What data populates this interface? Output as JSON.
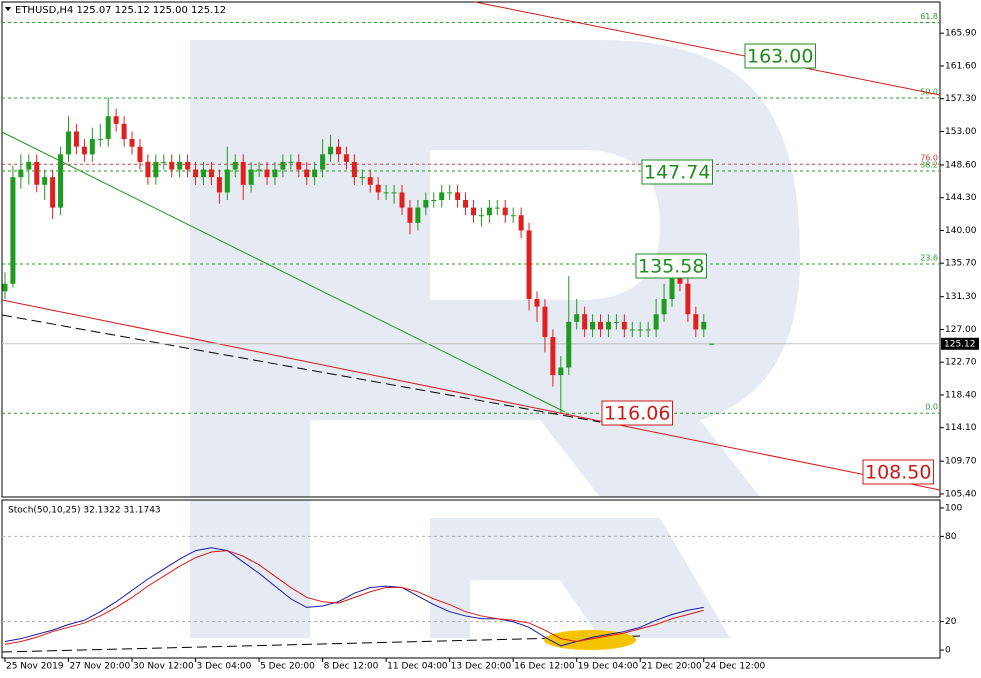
{
  "chart_data": [
    {
      "type": "candlestick",
      "title": "ETHUSD,H4  125.07 125.12 125.00 125.12",
      "up_color": "#1e9a1e",
      "down_color": "#e0201e",
      "x": [
        0,
        2,
        4,
        6,
        8,
        10,
        12,
        14,
        16,
        18,
        20,
        22,
        24,
        26,
        28,
        30,
        32,
        34,
        36,
        38,
        40,
        42,
        44,
        46,
        48,
        50,
        52,
        54,
        56,
        58,
        60,
        62,
        64,
        66,
        68,
        70,
        72,
        74,
        76,
        78,
        80,
        82,
        84,
        86,
        88,
        90,
        92,
        94,
        96,
        98,
        100,
        102,
        104,
        106,
        108,
        110,
        112,
        114,
        116,
        118,
        120,
        122,
        124,
        126,
        128,
        130,
        132,
        134,
        136,
        138,
        140,
        142,
        144,
        146,
        148,
        150,
        152,
        154,
        156,
        158,
        160,
        162,
        164,
        166,
        168,
        170,
        172,
        174,
        176,
        178
      ],
      "ohlc": [
        [
          132,
          134.5,
          131,
          133
        ],
        [
          133,
          148.5,
          132.5,
          147
        ],
        [
          147,
          150,
          145.5,
          148
        ],
        [
          148,
          150,
          146,
          149
        ],
        [
          149,
          150,
          145,
          146
        ],
        [
          146,
          148,
          144,
          147
        ],
        [
          147,
          148,
          141.5,
          143
        ],
        [
          143,
          151,
          142,
          150
        ],
        [
          150,
          155,
          149,
          153
        ],
        [
          153,
          154,
          150,
          151
        ],
        [
          151,
          152,
          149,
          150
        ],
        [
          150,
          153.5,
          149,
          152
        ],
        [
          152,
          154,
          151,
          152
        ],
        [
          152,
          157.5,
          151,
          155
        ],
        [
          155,
          156,
          153,
          154
        ],
        [
          154,
          155,
          151,
          152
        ],
        [
          152,
          153,
          150,
          151
        ],
        [
          151,
          152,
          148,
          149
        ],
        [
          149,
          150,
          146,
          147
        ],
        [
          147,
          150,
          146,
          149
        ],
        [
          149,
          150,
          148,
          149
        ],
        [
          149,
          150,
          147,
          148
        ],
        [
          148,
          150,
          147,
          149
        ],
        [
          149,
          150,
          147,
          148
        ],
        [
          148,
          149,
          146,
          147
        ],
        [
          147,
          149,
          146,
          148
        ],
        [
          148,
          149,
          146,
          147
        ],
        [
          147,
          148,
          143.5,
          145
        ],
        [
          145,
          151,
          144,
          148
        ],
        [
          148,
          150,
          147,
          149
        ],
        [
          149,
          150,
          144,
          146
        ],
        [
          146,
          149,
          145,
          148
        ],
        [
          148,
          149,
          147,
          148
        ],
        [
          148,
          149,
          146,
          147
        ],
        [
          147,
          149,
          146,
          148
        ],
        [
          148,
          150,
          147,
          149
        ],
        [
          149,
          150,
          148,
          149
        ],
        [
          149,
          150,
          147,
          148
        ],
        [
          148,
          149,
          146,
          147
        ],
        [
          147,
          149,
          146,
          148
        ],
        [
          148,
          152,
          147,
          150
        ],
        [
          150,
          152.5,
          149,
          151
        ],
        [
          151,
          152,
          149,
          150
        ],
        [
          150,
          151,
          148,
          149
        ],
        [
          149,
          150,
          146,
          147
        ],
        [
          147,
          148,
          146,
          147
        ],
        [
          147,
          148,
          145,
          146
        ],
        [
          146,
          147,
          144,
          145
        ],
        [
          145,
          146,
          144,
          145
        ],
        [
          145,
          146,
          143.5,
          145
        ],
        [
          145,
          146,
          142,
          143
        ],
        [
          143,
          144,
          139.5,
          141
        ],
        [
          141,
          144,
          140,
          143
        ],
        [
          143,
          145,
          142,
          144
        ],
        [
          144,
          145,
          143,
          144
        ],
        [
          144,
          146,
          143,
          145
        ],
        [
          145,
          146,
          144,
          145
        ],
        [
          145,
          146,
          143,
          144
        ],
        [
          144,
          145,
          142,
          143
        ],
        [
          143,
          144,
          141,
          142
        ],
        [
          142,
          143,
          140.5,
          142
        ],
        [
          142,
          144,
          141,
          143
        ],
        [
          143,
          144,
          142,
          143
        ],
        [
          143,
          144,
          141,
          142
        ],
        [
          142,
          143,
          141,
          142
        ],
        [
          142,
          143,
          139,
          140
        ],
        [
          140,
          141,
          129.5,
          131
        ],
        [
          131,
          132,
          128,
          130
        ],
        [
          130,
          131,
          124,
          126
        ],
        [
          126,
          127,
          119.5,
          121
        ],
        [
          121,
          123.5,
          116.06,
          122
        ],
        [
          122,
          134,
          121,
          128
        ],
        [
          128,
          131,
          127,
          129
        ],
        [
          129,
          130,
          126,
          127
        ],
        [
          127,
          129,
          126,
          128
        ],
        [
          128,
          129,
          126,
          127
        ],
        [
          127,
          129,
          126,
          128
        ],
        [
          128,
          129,
          127,
          128
        ],
        [
          128,
          129,
          126,
          127
        ],
        [
          127,
          128,
          126,
          127
        ],
        [
          127,
          128,
          126,
          127
        ],
        [
          127,
          128,
          126,
          127
        ],
        [
          127,
          131,
          126,
          129
        ],
        [
          129,
          133,
          128,
          131
        ],
        [
          131,
          135.58,
          130,
          134
        ],
        [
          134,
          135,
          132,
          133
        ],
        [
          133,
          134,
          128,
          129
        ],
        [
          129,
          130,
          126,
          127
        ],
        [
          127,
          129,
          126,
          128
        ],
        [
          125.07,
          125.12,
          125.0,
          125.12
        ]
      ],
      "last_price": 125.12,
      "xlim": [
        -0.75,
        235.5
      ],
      "ylim": [
        105.0,
        170.0
      ],
      "yticks": [
        {
          "value": 165.9,
          "label": "165.90"
        },
        {
          "value": 161.6,
          "label": "161.60"
        },
        {
          "value": 157.3,
          "label": "157.30"
        },
        {
          "value": 153.0,
          "label": "153.00"
        },
        {
          "value": 148.6,
          "label": "148.60"
        },
        {
          "value": 144.3,
          "label": "144.30"
        },
        {
          "value": 140.0,
          "label": "140.00"
        },
        {
          "value": 135.7,
          "label": "135.70"
        },
        {
          "value": 131.3,
          "label": "131.30"
        },
        {
          "value": 127.0,
          "label": "127.00"
        },
        {
          "value": 122.7,
          "label": "122.70"
        },
        {
          "value": 118.4,
          "label": "118.40"
        },
        {
          "value": 114.1,
          "label": "114.10"
        },
        {
          "value": 109.7,
          "label": "109.70"
        },
        {
          "value": 105.4,
          "label": "105.40"
        }
      ],
      "levels": [
        {
          "label": "61.8",
          "value": 167.3,
          "color": "#2a9d2a"
        },
        {
          "label": "50.0",
          "value": 157.4,
          "color": "#2a9d2a"
        },
        {
          "label": "76.0",
          "value": 148.7,
          "color": "#d04040"
        },
        {
          "label": "38.2",
          "value": 147.8,
          "color": "#2a9d2a"
        },
        {
          "label": "23.6",
          "value": 135.6,
          "color": "#2a9d2a"
        },
        {
          "label": "0.0",
          "value": 116.0,
          "color": "#2a9d2a"
        }
      ],
      "annotations": [
        {
          "text": "163.00",
          "color": "#1e8c1e"
        },
        {
          "text": "147.74",
          "color": "#1e8c1e"
        },
        {
          "text": "135.58",
          "color": "#1e8c1e"
        },
        {
          "text": "116.06",
          "color": "#d01818"
        },
        {
          "text": "108.50",
          "color": "#d01818"
        }
      ]
    },
    {
      "type": "line",
      "title": "Stoch(50,10,25) 32.1322 31.1743",
      "x": [
        0,
        4,
        8,
        12,
        16,
        20,
        24,
        28,
        32,
        36,
        40,
        44,
        48,
        52,
        56,
        60,
        64,
        68,
        72,
        76,
        80,
        84,
        88,
        92,
        96,
        100,
        104,
        108,
        112,
        116,
        120,
        124,
        128,
        132,
        136,
        140,
        144,
        148,
        152,
        156,
        160,
        164,
        168,
        172,
        176
      ],
      "series": [
        {
          "color": "#1a1aa8",
          "values": [
            6,
            8,
            11,
            14,
            18,
            21,
            27,
            34,
            42,
            50,
            57,
            64,
            70,
            72,
            70,
            62,
            54,
            45,
            36,
            30,
            31,
            34,
            40,
            44,
            45,
            44,
            38,
            32,
            27,
            24,
            22,
            22,
            20,
            16,
            9,
            3,
            6,
            9,
            11,
            13,
            16,
            21,
            25,
            28,
            30
          ]
        },
        {
          "color": "#e01818",
          "values": [
            4,
            6,
            9,
            13,
            16,
            19,
            24,
            30,
            37,
            45,
            52,
            59,
            65,
            69,
            70,
            66,
            60,
            52,
            44,
            37,
            34,
            33,
            37,
            41,
            44,
            44,
            41,
            36,
            32,
            27,
            24,
            22,
            21,
            19,
            14,
            8,
            6,
            8,
            10,
            12,
            15,
            18,
            22,
            25,
            28
          ]
        }
      ],
      "xlim": [
        -0.75,
        235.5
      ],
      "ylim": [
        -5.6,
        105.6
      ],
      "yticks": [
        100,
        80,
        20,
        0
      ],
      "levels": [
        80,
        20
      ],
      "xticks": [
        {
          "value": 0,
          "label": "25 Nov 2019"
        },
        {
          "value": 16,
          "label": "27 Nov 20:00"
        },
        {
          "value": 32,
          "label": "30 Nov 12:00"
        },
        {
          "value": 48,
          "label": "3 Dec 04:00"
        },
        {
          "value": 64,
          "label": "5 Dec 20:00"
        },
        {
          "value": 80,
          "label": "8 Dec 12:00"
        },
        {
          "value": 96,
          "label": "11 Dec 04:00"
        },
        {
          "value": 112,
          "label": "13 Dec 20:00"
        },
        {
          "value": 128,
          "label": "16 Dec 12:00"
        },
        {
          "value": 144,
          "label": "19 Dec 04:00"
        },
        {
          "value": 160,
          "label": "21 Dec 20:00"
        },
        {
          "value": 176,
          "label": "24 Dec 12:00"
        }
      ]
    }
  ]
}
